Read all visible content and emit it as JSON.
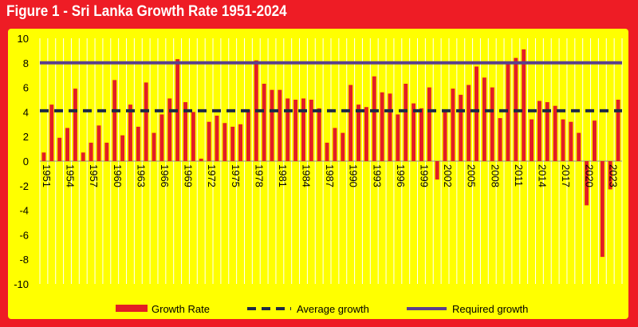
{
  "title": "Figure 1 - Sri Lanka Growth Rate 1951-2024",
  "colors": {
    "background": "#ee1c25",
    "plot_area": "#ffff00",
    "bars": "#e31e24",
    "average_line": "#1f2a44",
    "required_line": "#5b3f8c",
    "gridlines": "#ffffff"
  },
  "chart_data": {
    "type": "bar",
    "title": "Figure 1 - Sri Lanka Growth Rate 1951-2024",
    "ylim": [
      -10,
      10
    ],
    "yticks": [
      -10,
      -8,
      -6,
      -4,
      -2,
      0,
      2,
      4,
      6,
      8,
      10
    ],
    "x_tick_labels": [
      "1951",
      "1954",
      "1957",
      "1960",
      "1963",
      "1966",
      "1969",
      "1972",
      "1975",
      "1978",
      "1981",
      "1984",
      "1987",
      "1990",
      "1993",
      "1996",
      "1999",
      "2002",
      "2005",
      "2008",
      "2011",
      "2014",
      "2017",
      "2020",
      "2023"
    ],
    "grid": "vertical",
    "legend_position": "bottom",
    "categories": [
      "1951",
      "1952",
      "1953",
      "1954",
      "1955",
      "1956",
      "1957",
      "1958",
      "1959",
      "1960",
      "1961",
      "1962",
      "1963",
      "1964",
      "1965",
      "1966",
      "1967",
      "1968",
      "1969",
      "1970",
      "1971",
      "1972",
      "1973",
      "1974",
      "1975",
      "1976",
      "1977",
      "1978",
      "1979",
      "1980",
      "1981",
      "1982",
      "1983",
      "1984",
      "1985",
      "1986",
      "1987",
      "1988",
      "1989",
      "1990",
      "1991",
      "1992",
      "1993",
      "1994",
      "1995",
      "1996",
      "1997",
      "1998",
      "1999",
      "2000",
      "2001",
      "2002",
      "2003",
      "2004",
      "2005",
      "2006",
      "2007",
      "2008",
      "2009",
      "2010",
      "2011",
      "2012",
      "2013",
      "2014",
      "2015",
      "2016",
      "2017",
      "2018",
      "2019",
      "2020",
      "2021",
      "2022",
      "2023",
      "2024"
    ],
    "series": [
      {
        "name": "Growth Rate",
        "type": "bar",
        "values": [
          0.7,
          4.6,
          1.9,
          2.7,
          5.9,
          0.7,
          1.5,
          2.9,
          1.5,
          6.6,
          2.1,
          4.6,
          2.8,
          6.4,
          2.3,
          3.8,
          5.1,
          8.3,
          4.8,
          4.0,
          0.2,
          3.2,
          3.7,
          3.1,
          2.8,
          3.0,
          4.2,
          8.2,
          6.3,
          5.8,
          5.8,
          5.1,
          5.0,
          5.1,
          5.0,
          4.3,
          1.5,
          2.7,
          2.3,
          6.2,
          4.6,
          4.4,
          6.9,
          5.6,
          5.5,
          3.8,
          6.3,
          4.7,
          4.3,
          6.0,
          -1.5,
          4.0,
          5.9,
          5.4,
          6.2,
          7.7,
          6.8,
          6.0,
          3.5,
          8.0,
          8.4,
          9.1,
          3.4,
          4.9,
          4.8,
          4.5,
          3.4,
          3.2,
          2.3,
          -3.6,
          3.3,
          -7.8,
          -2.3,
          5.0
        ]
      },
      {
        "name": "Average growth",
        "type": "line-dashed",
        "value": 4.1
      },
      {
        "name": "Required growth",
        "type": "line",
        "value": 8.0
      }
    ]
  }
}
